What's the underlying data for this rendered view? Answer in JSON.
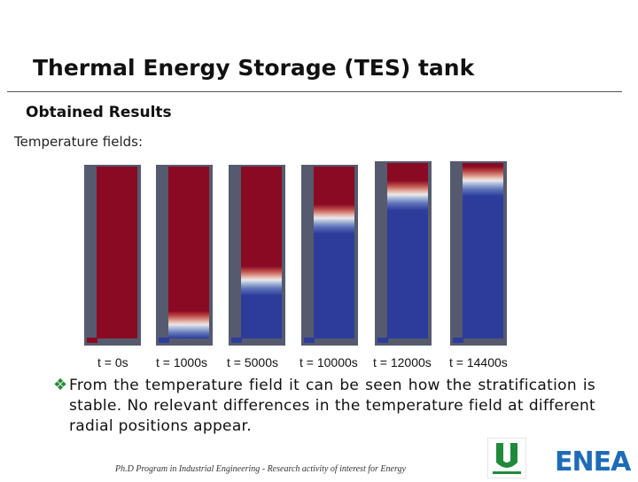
{
  "slide": {
    "title": "Thermal Energy Storage (TES) tank",
    "subtitle": "Obtained Results",
    "section_label": "Temperature fields:"
  },
  "tanks": [
    {
      "time_label": "t = 0s",
      "thermocline_fraction": 1.0
    },
    {
      "time_label": "t = 1000s",
      "thermocline_fraction": 0.92
    },
    {
      "time_label": "t = 5000s",
      "thermocline_fraction": 0.66
    },
    {
      "time_label": "t = 10000s",
      "thermocline_fraction": 0.3
    },
    {
      "time_label": "t = 12000s",
      "thermocline_fraction": 0.18
    },
    {
      "time_label": "t = 14400s",
      "thermocline_fraction": 0.1
    }
  ],
  "colors": {
    "hot": "#8a0a24",
    "cold": "#2d3c9a",
    "tank_wall": "#555a6e"
  },
  "bullet": {
    "text": "From the temperature field it can be seen how the stratification is stable. No relevant differences in the temperature field at different radial positions appear."
  },
  "footer": {
    "text": "Ph.D Program in Industrial Engineering - Research activity of interest for Energy"
  },
  "logos": {
    "enea": "ENEA",
    "university_icon": "university-u-logo"
  }
}
